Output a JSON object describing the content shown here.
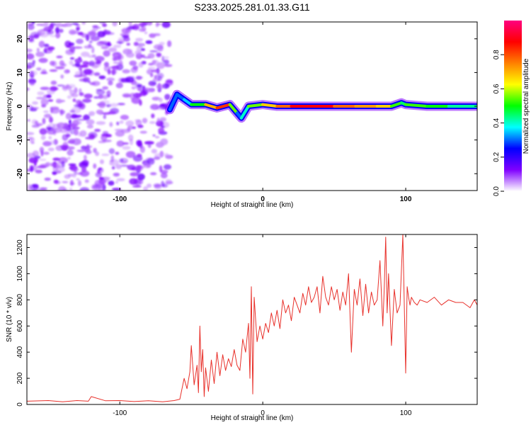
{
  "chart_data": [
    {
      "type": "heatmap",
      "title": "S233.2025.281.01.33.G11",
      "xlabel": "Height of straight line (km)",
      "ylabel": "Frequency (Hz)",
      "xlim": [
        -165,
        150
      ],
      "ylim": [
        -25,
        25
      ],
      "xticks": [
        {
          "value": -100,
          "label": "-100"
        },
        {
          "value": 0,
          "label": "0"
        },
        {
          "value": 100,
          "label": "100"
        }
      ],
      "yticks": [
        {
          "value": -20,
          "label": "-20"
        },
        {
          "value": -10,
          "label": "-10"
        },
        {
          "value": 0,
          "label": "0"
        },
        {
          "value": 10,
          "label": "10"
        },
        {
          "value": 20,
          "label": "20"
        }
      ],
      "colorbar": {
        "label": "Normalized spectral amplitude",
        "range": [
          0,
          1
        ],
        "ticks": [
          {
            "value": 0.0,
            "label": "0.0"
          },
          {
            "value": 0.2,
            "label": "0.2"
          },
          {
            "value": 0.4,
            "label": "0.4"
          },
          {
            "value": 0.6,
            "label": "0.6"
          },
          {
            "value": 0.8,
            "label": "0.8"
          }
        ],
        "colors": [
          "#ffffff",
          "#8000ff",
          "#0000ff",
          "#00ffff",
          "#00ff00",
          "#ffff00",
          "#ff8000",
          "#ff0000",
          "#ff0080"
        ]
      },
      "noise_region": {
        "x": [
          -165,
          -65
        ],
        "freq": [
          -25,
          25
        ],
        "amplitude": [
          0.05,
          0.15
        ]
      },
      "ridge": [
        {
          "x": -65,
          "freq": -1.0,
          "amplitude": 0.25
        },
        {
          "x": -60,
          "freq": 3.5,
          "amplitude": 0.35
        },
        {
          "x": -55,
          "freq": 2.0,
          "amplitude": 0.25
        },
        {
          "x": -50,
          "freq": 0.5,
          "amplitude": 0.45
        },
        {
          "x": -40,
          "freq": 0.5,
          "amplitude": 0.55
        },
        {
          "x": -32,
          "freq": -0.5,
          "amplitude": 0.85
        },
        {
          "x": -23,
          "freq": 0.5,
          "amplitude": 0.8
        },
        {
          "x": -18,
          "freq": -2.0,
          "amplitude": 0.3
        },
        {
          "x": -15,
          "freq": -3.5,
          "amplitude": 0.3
        },
        {
          "x": -10,
          "freq": 0.0,
          "amplitude": 0.5
        },
        {
          "x": 0,
          "freq": 0.5,
          "amplitude": 0.6
        },
        {
          "x": 10,
          "freq": 0.0,
          "amplitude": 0.75
        },
        {
          "x": 20,
          "freq": 0.0,
          "amplitude": 0.8
        },
        {
          "x": 35,
          "freq": 0.0,
          "amplitude": 0.95
        },
        {
          "x": 50,
          "freq": 0.0,
          "amplitude": 0.8
        },
        {
          "x": 65,
          "freq": 0.0,
          "amplitude": 0.75
        },
        {
          "x": 80,
          "freq": 0.0,
          "amplitude": 0.7
        },
        {
          "x": 90,
          "freq": 0.0,
          "amplitude": 0.65
        },
        {
          "x": 97,
          "freq": 1.0,
          "amplitude": 0.4
        },
        {
          "x": 100,
          "freq": 0.5,
          "amplitude": 0.5
        },
        {
          "x": 115,
          "freq": 0.0,
          "amplitude": 0.55
        },
        {
          "x": 130,
          "freq": 0.0,
          "amplitude": 0.45
        },
        {
          "x": 150,
          "freq": 0.0,
          "amplitude": 0.4
        }
      ]
    },
    {
      "type": "line",
      "xlabel": "Height of straight line (km)",
      "ylabel": "SNR (10 * v/v)",
      "xlim": [
        -165,
        150
      ],
      "ylim": [
        0,
        1300
      ],
      "xticks": [
        {
          "value": -100,
          "label": "-100"
        },
        {
          "value": 0,
          "label": "0"
        },
        {
          "value": 100,
          "label": "100"
        }
      ],
      "yticks": [
        {
          "value": 0,
          "label": "0"
        },
        {
          "value": 200,
          "label": "200"
        },
        {
          "value": 400,
          "label": "400"
        },
        {
          "value": 600,
          "label": "600"
        },
        {
          "value": 800,
          "label": "800"
        },
        {
          "value": 1000,
          "label": "1000"
        },
        {
          "value": 1200,
          "label": "1200"
        }
      ],
      "series": [
        {
          "name": "SNR",
          "color": "#e8302a",
          "x": [
            -165,
            -150,
            -140,
            -130,
            -122,
            -120,
            -110,
            -100,
            -90,
            -80,
            -70,
            -62,
            -58,
            -55,
            -53,
            -51,
            -50,
            -48,
            -46,
            -45,
            -44,
            -43,
            -42,
            -41,
            -40,
            -38,
            -36,
            -34,
            -32,
            -30,
            -28,
            -26,
            -24,
            -22,
            -20,
            -18,
            -16,
            -14,
            -12,
            -10,
            -9,
            -8,
            -7,
            -6,
            -4,
            -2,
            0,
            2,
            4,
            6,
            8,
            10,
            12,
            14,
            16,
            18,
            20,
            22,
            24,
            26,
            28,
            30,
            32,
            34,
            36,
            38,
            40,
            42,
            44,
            46,
            48,
            50,
            52,
            54,
            56,
            58,
            60,
            62,
            64,
            66,
            68,
            70,
            72,
            74,
            76,
            78,
            80,
            82,
            84,
            85,
            86,
            87,
            88,
            90,
            92,
            94,
            96,
            98,
            100,
            101,
            102,
            103,
            104,
            106,
            108,
            110,
            115,
            120,
            125,
            130,
            135,
            140,
            145,
            148,
            150
          ],
          "values": [
            25,
            30,
            20,
            30,
            25,
            60,
            28,
            30,
            22,
            28,
            20,
            30,
            40,
            200,
            120,
            250,
            450,
            150,
            300,
            90,
            600,
            250,
            420,
            60,
            280,
            100,
            340,
            160,
            400,
            220,
            380,
            260,
            350,
            290,
            420,
            300,
            260,
            500,
            400,
            620,
            200,
            900,
            80,
            820,
            480,
            600,
            500,
            620,
            550,
            700,
            600,
            720,
            580,
            800,
            700,
            760,
            640,
            820,
            760,
            700,
            850,
            760,
            900,
            780,
            820,
            900,
            700,
            980,
            820,
            760,
            900,
            800,
            880,
            720,
            860,
            760,
            1000,
            400,
            880,
            760,
            960,
            680,
            920,
            700,
            860,
            760,
            800,
            1100,
            600,
            900,
            1280,
            700,
            1000,
            450,
            880,
            700,
            760,
            1300,
            240,
            900,
            820,
            760,
            820,
            780,
            760,
            800,
            780,
            820,
            760,
            800,
            780,
            780,
            740,
            800,
            760
          ]
        }
      ]
    }
  ]
}
